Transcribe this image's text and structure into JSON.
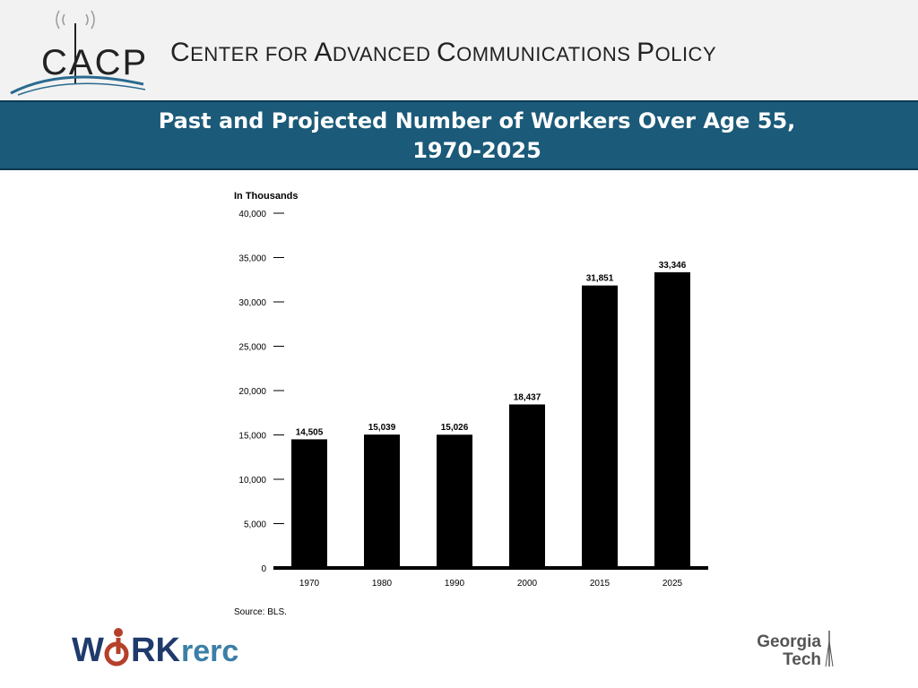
{
  "header": {
    "logo_text": "CACP",
    "org_name_parts": [
      {
        "cap": "C",
        "rest": "ENTER FOR "
      },
      {
        "cap": "A",
        "rest": "DVANCED "
      },
      {
        "cap": "C",
        "rest": "OMMUNICATIONS "
      },
      {
        "cap": "P",
        "rest": "OLICY"
      }
    ],
    "colors": {
      "background": "#f2f2f2",
      "arc": "#2a6a8f"
    }
  },
  "slide": {
    "title_line1": "Past and Projected Number of Workers Over Age 55,",
    "title_line2": "1970-2025",
    "title_band_color": "#1b5a78"
  },
  "chart_data": {
    "type": "bar",
    "title": "",
    "ylabel": "In Thousands",
    "xlabel": "",
    "categories": [
      "1970",
      "1980",
      "1990",
      "2000",
      "2015",
      "2025"
    ],
    "values": [
      14505,
      15039,
      15026,
      18437,
      31851,
      33346
    ],
    "value_labels": [
      "14,505",
      "15,039",
      "15,026",
      "18,437",
      "31,851",
      "33,346"
    ],
    "ylim": [
      0,
      40000
    ],
    "yticks": [
      0,
      5000,
      10000,
      15000,
      20000,
      25000,
      30000,
      35000,
      40000
    ],
    "ytick_labels": [
      "0",
      "5,000",
      "10,000",
      "15,000",
      "20,000",
      "25,000",
      "30,000",
      "35,000",
      "40,000"
    ],
    "source": "Source: BLS.",
    "grid": false,
    "bar_color": "#000000"
  },
  "footer": {
    "work_logo": {
      "text_left": "W",
      "text_o": "O",
      "text_rk": "RK",
      "text_rerc": "rerc",
      "colors": {
        "navy": "#1f3a6b",
        "red": "#b5402a",
        "teal": "#3b7fa6"
      }
    },
    "gt_logo": {
      "line1": "Georgia",
      "line2": "Tech"
    }
  }
}
